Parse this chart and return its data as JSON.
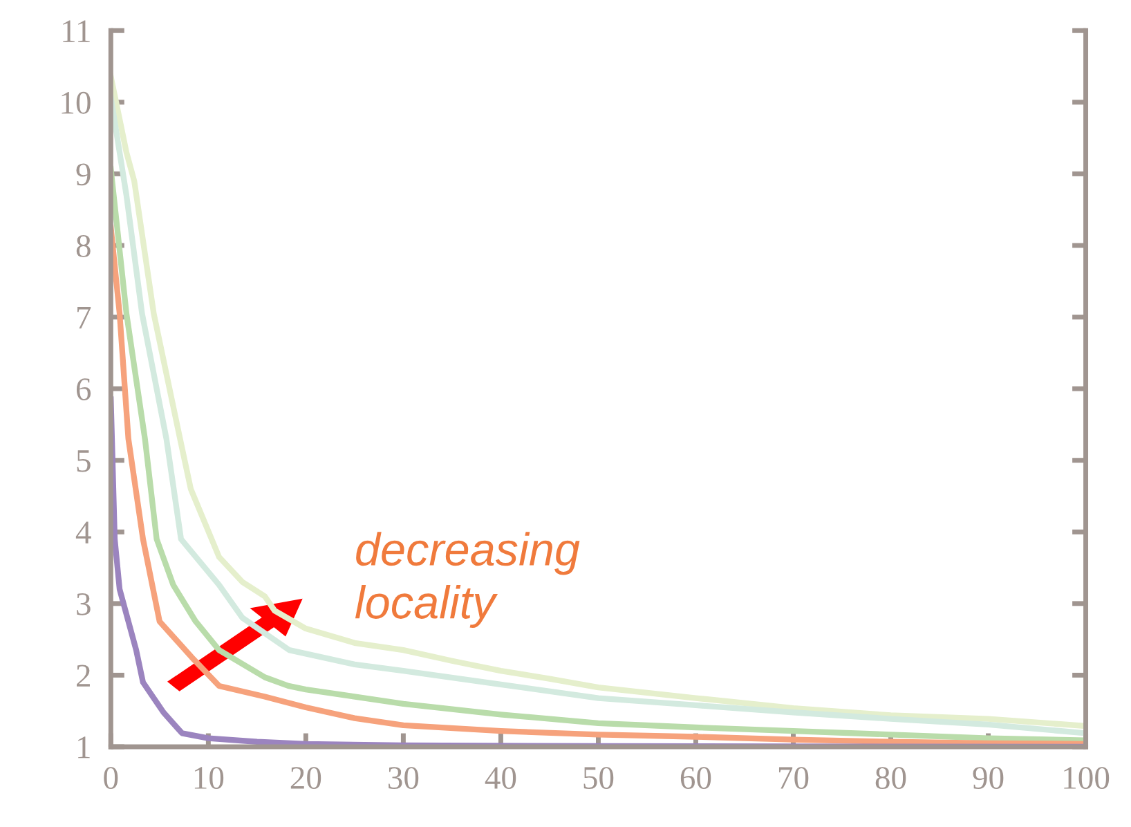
{
  "chart_data": {
    "type": "line",
    "xlim": [
      0,
      100
    ],
    "ylim": [
      1,
      11
    ],
    "xticks": [
      0,
      10,
      20,
      30,
      40,
      50,
      60,
      70,
      80,
      90,
      100
    ],
    "yticks": [
      1,
      2,
      3,
      4,
      5,
      6,
      7,
      8,
      9,
      10,
      11
    ],
    "grid": false,
    "legend": false,
    "marker": "none",
    "line_style": "solid",
    "annotations": [
      "decreasing\nlocality"
    ],
    "series": [
      {
        "color": "#e5efcc",
        "x": [
          0,
          1.6,
          2.4,
          4.4,
          7.1,
          8.2,
          11.1,
          13.5,
          15.8,
          16.8,
          20,
          25,
          30,
          35,
          40,
          45,
          50,
          60,
          70,
          80,
          90,
          100
        ],
        "values": [
          10.36,
          9.3,
          8.9,
          7.05,
          5.3,
          4.6,
          3.65,
          3.3,
          3.1,
          2.9,
          2.65,
          2.45,
          2.35,
          2.2,
          2.06,
          1.95,
          1.83,
          1.68,
          1.54,
          1.44,
          1.39,
          1.29
        ]
      },
      {
        "color": "#d3eadf",
        "x": [
          0,
          1.6,
          3.2,
          5.7,
          7.2,
          11.1,
          13.5,
          18.3,
          20,
          25,
          30,
          40,
          50,
          60,
          70,
          80,
          90,
          100
        ],
        "values": [
          10.07,
          8.7,
          7.05,
          5.3,
          3.9,
          3.26,
          2.8,
          2.35,
          2.3,
          2.15,
          2.06,
          1.87,
          1.68,
          1.58,
          1.48,
          1.39,
          1.31,
          1.19
        ]
      },
      {
        "color": "#b9dcaa",
        "x": [
          0,
          1.6,
          3.5,
          4.7,
          6.4,
          8.7,
          11.1,
          15.8,
          18.2,
          20,
          30,
          40,
          50,
          60,
          70,
          80,
          90,
          100
        ],
        "values": [
          9.07,
          7.05,
          5.3,
          3.9,
          3.26,
          2.75,
          2.35,
          1.97,
          1.85,
          1.8,
          1.6,
          1.45,
          1.33,
          1.27,
          1.22,
          1.17,
          1.12,
          1.09
        ]
      },
      {
        "color": "#f6a27c",
        "x": [
          0,
          0.9,
          1.8,
          3.3,
          5,
          8.3,
          11.1,
          15.8,
          20,
          25,
          30,
          40,
          50,
          60,
          70,
          80,
          90,
          100
        ],
        "values": [
          8.25,
          7.05,
          5.3,
          3.9,
          2.75,
          2.25,
          1.85,
          1.7,
          1.55,
          1.4,
          1.3,
          1.22,
          1.17,
          1.14,
          1.1,
          1.07,
          1.05,
          1.04
        ]
      },
      {
        "color": "#9b84bf",
        "x": [
          0,
          0.4,
          0.9,
          2.6,
          3.3,
          5.4,
          7.3,
          10,
          15,
          20,
          30,
          50,
          100
        ],
        "values": [
          5.85,
          3.9,
          3.2,
          2.35,
          1.9,
          1.48,
          1.19,
          1.12,
          1.07,
          1.04,
          1.02,
          1.01,
          1.0
        ]
      }
    ]
  }
}
